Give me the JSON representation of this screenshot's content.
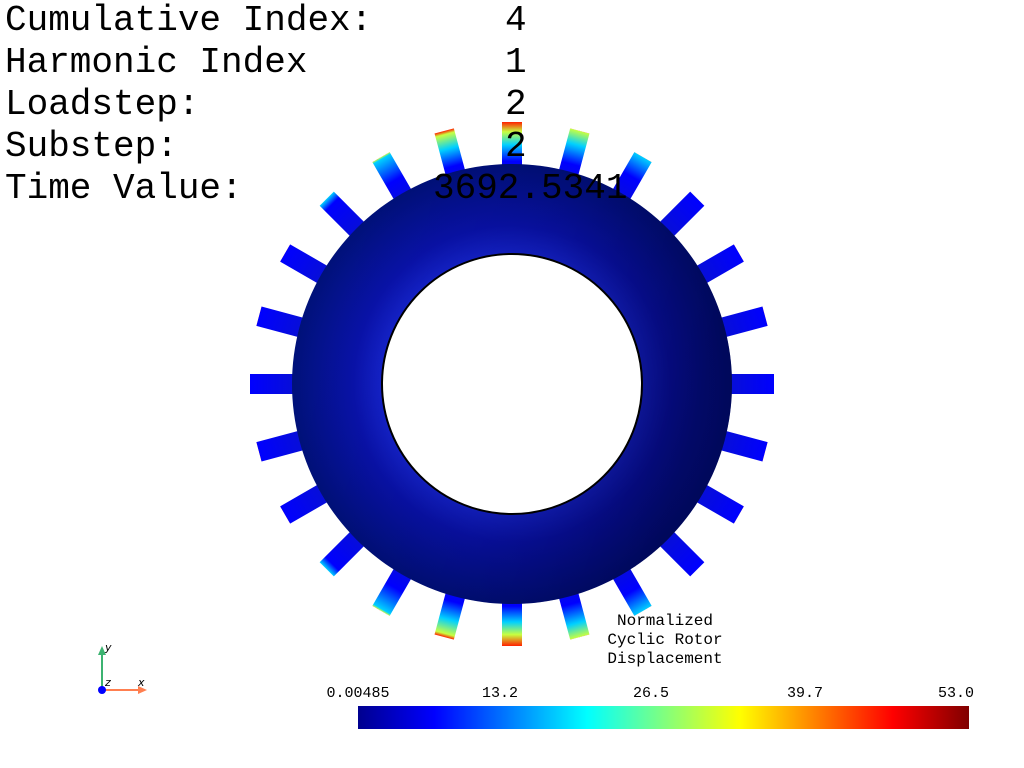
{
  "info": {
    "rows": [
      {
        "label": "Cumulative Index:",
        "value": "4"
      },
      {
        "label": "Harmonic Index",
        "value": "1"
      },
      {
        "label": "Loadstep:",
        "value": "2"
      },
      {
        "label": "Substep:",
        "value": "2"
      },
      {
        "label": "Time Value:",
        "value": "3692.5341"
      }
    ]
  },
  "colorbar": {
    "title_lines": [
      "Normalized",
      "Cyclic Rotor",
      "Displacement"
    ],
    "ticks": [
      "0.00485",
      "13.2",
      "26.5",
      "39.7",
      "53.0"
    ],
    "colormap": "jet"
  },
  "axes": {
    "y": "y",
    "z": "z",
    "x": "x"
  },
  "colors": {
    "background": "#ffffff",
    "ring_inner": "#00006a",
    "ring_outer": "#0016c8",
    "x_axis": "#ff7f50",
    "y_axis": "#3cb371",
    "z_axis": "#0000ff"
  },
  "rotor": {
    "blade_count": 24
  }
}
